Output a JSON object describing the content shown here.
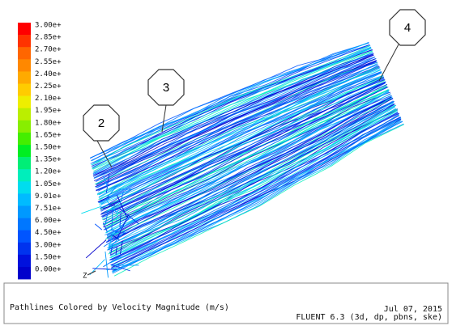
{
  "colorbar": {
    "labels": [
      "3.00e+",
      "2.85e+",
      "2.70e+",
      "2.55e+",
      "2.40e+",
      "2.25e+",
      "2.10e+",
      "1.95e+",
      "1.80e+",
      "1.65e+",
      "1.50e+",
      "1.35e+",
      "1.20e+",
      "1.05e+",
      "9.01e+",
      "7.51e+",
      "6.00e+",
      "4.50e+",
      "3.00e+",
      "1.50e+",
      "0.00e+"
    ],
    "colors": [
      "#ff0000",
      "#ff3300",
      "#ff6600",
      "#ff8800",
      "#ffaa00",
      "#ffcc00",
      "#eeee00",
      "#bbee00",
      "#88ee00",
      "#44ee00",
      "#00ee22",
      "#00ee77",
      "#00eebb",
      "#00ddee",
      "#00bbff",
      "#0099ff",
      "#0077ff",
      "#0055ff",
      "#0033ee",
      "#0011dd",
      "#0000cc"
    ]
  },
  "callouts": [
    "2",
    "3",
    "4"
  ],
  "axis_label": "Z",
  "caption": {
    "description": "Pathlines Colored by Velocity Magnitude (m/s)",
    "date": "Jul 07, 2015",
    "solver": "FLUENT 6.3 (3d, dp, pbns, ske)"
  }
}
